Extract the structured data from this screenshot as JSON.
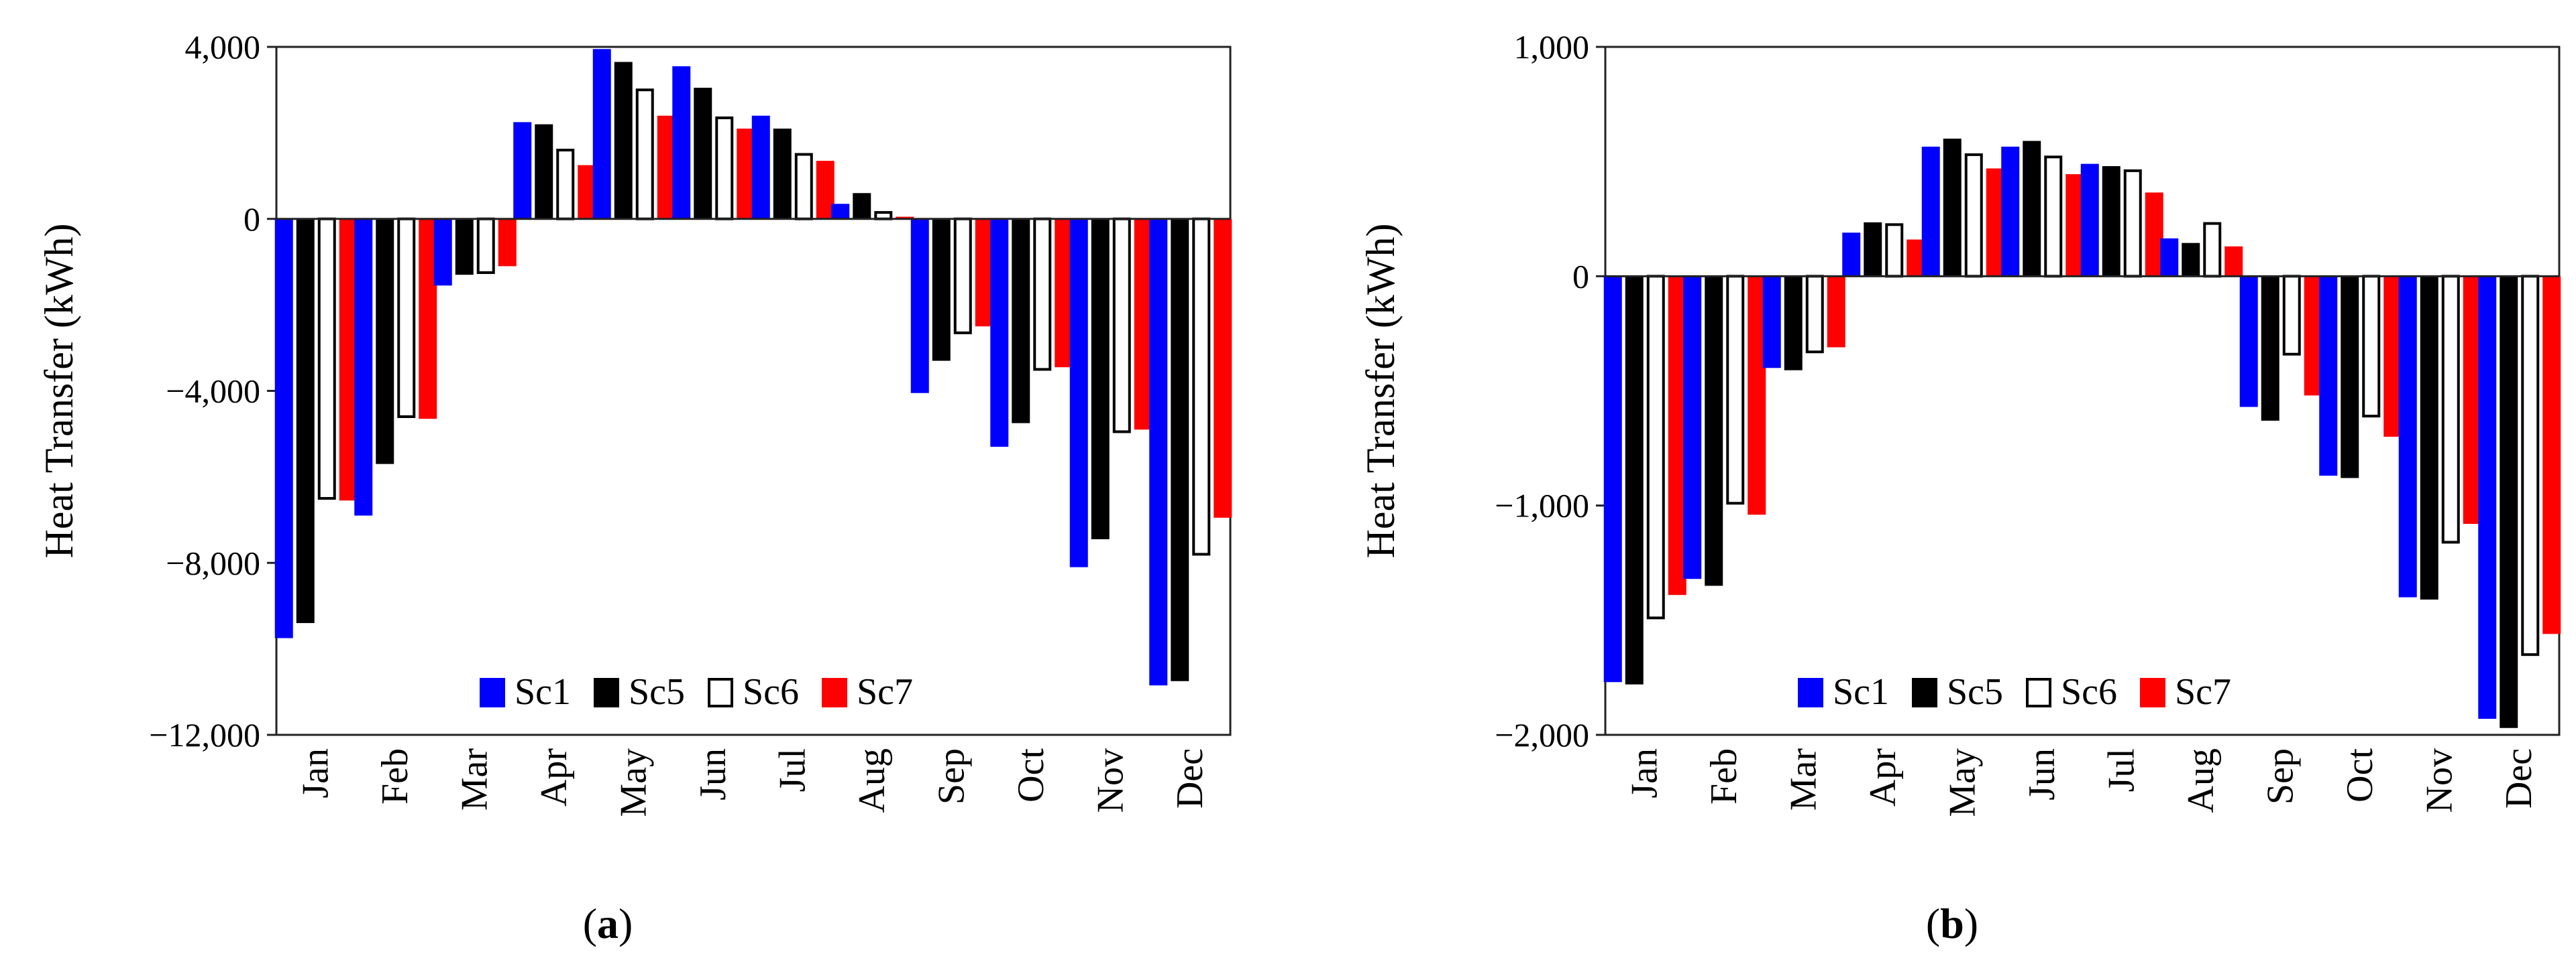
{
  "chart_data": [
    {
      "type": "bar",
      "panel_label": "a",
      "categories": [
        "Jan",
        "Feb",
        "Mar",
        "Apr",
        "May",
        "Jun",
        "Jul",
        "Aug",
        "Sep",
        "Oct",
        "Nov",
        "Dec"
      ],
      "ylabel": "Heat Transfer (kWh)",
      "ylim": [
        -12000,
        4000
      ],
      "yticks": [
        4000,
        0,
        -4000,
        -8000,
        -12000
      ],
      "ytick_labels": [
        "4,000",
        "0",
        "−4,000",
        "−8,000",
        "−12,000"
      ],
      "legend_position": "bottom-right",
      "series": [
        {
          "name": "Sc1",
          "color": "#0000ff",
          "style": "filled",
          "values": [
            -9750,
            -6900,
            -1550,
            2250,
            3950,
            3550,
            2400,
            350,
            -4050,
            -5300,
            -8100,
            -10850
          ]
        },
        {
          "name": "Sc5",
          "color": "#000000",
          "style": "filled",
          "values": [
            -9400,
            -5700,
            -1300,
            2200,
            3650,
            3050,
            2100,
            600,
            -3300,
            -4750,
            -7450,
            -10750
          ]
        },
        {
          "name": "Sc6",
          "color": "#000000",
          "style": "outline",
          "values": [
            -6500,
            -4600,
            -1250,
            1600,
            3000,
            2350,
            1500,
            150,
            -2650,
            -3500,
            -4950,
            -7800
          ]
        },
        {
          "name": "Sc7",
          "color": "#ff0000",
          "style": "filled",
          "values": [
            -6550,
            -4650,
            -1100,
            1250,
            2400,
            2100,
            1350,
            50,
            -2500,
            -3450,
            -4900,
            -6950
          ]
        }
      ]
    },
    {
      "type": "bar",
      "panel_label": "b",
      "categories": [
        "Jan",
        "Feb",
        "Mar",
        "Apr",
        "May",
        "Jun",
        "Jul",
        "Aug",
        "Sep",
        "Oct",
        "Nov",
        "Dec"
      ],
      "ylabel": "Heat Transfer (kWh)",
      "ylim": [
        -2000,
        1000
      ],
      "yticks": [
        1000,
        0,
        -1000,
        -2000
      ],
      "ytick_labels": [
        "1,000",
        "0",
        "−1,000",
        "−2,000"
      ],
      "legend_position": "bottom-center",
      "series": [
        {
          "name": "Sc1",
          "color": "#0000ff",
          "style": "filled",
          "values": [
            -1770,
            -1320,
            -400,
            190,
            565,
            565,
            490,
            165,
            -570,
            -870,
            -1400,
            -1930
          ]
        },
        {
          "name": "Sc5",
          "color": "#000000",
          "style": "filled",
          "values": [
            -1780,
            -1350,
            -410,
            235,
            600,
            590,
            480,
            145,
            -630,
            -880,
            -1410,
            -1970
          ]
        },
        {
          "name": "Sc6",
          "color": "#000000",
          "style": "outline",
          "values": [
            -1490,
            -990,
            -330,
            225,
            530,
            520,
            460,
            230,
            -340,
            -610,
            -1160,
            -1650
          ]
        },
        {
          "name": "Sc7",
          "color": "#ff0000",
          "style": "filled",
          "values": [
            -1390,
            -1040,
            -310,
            160,
            470,
            445,
            365,
            130,
            -520,
            -700,
            -1080,
            -1560
          ]
        }
      ]
    }
  ]
}
